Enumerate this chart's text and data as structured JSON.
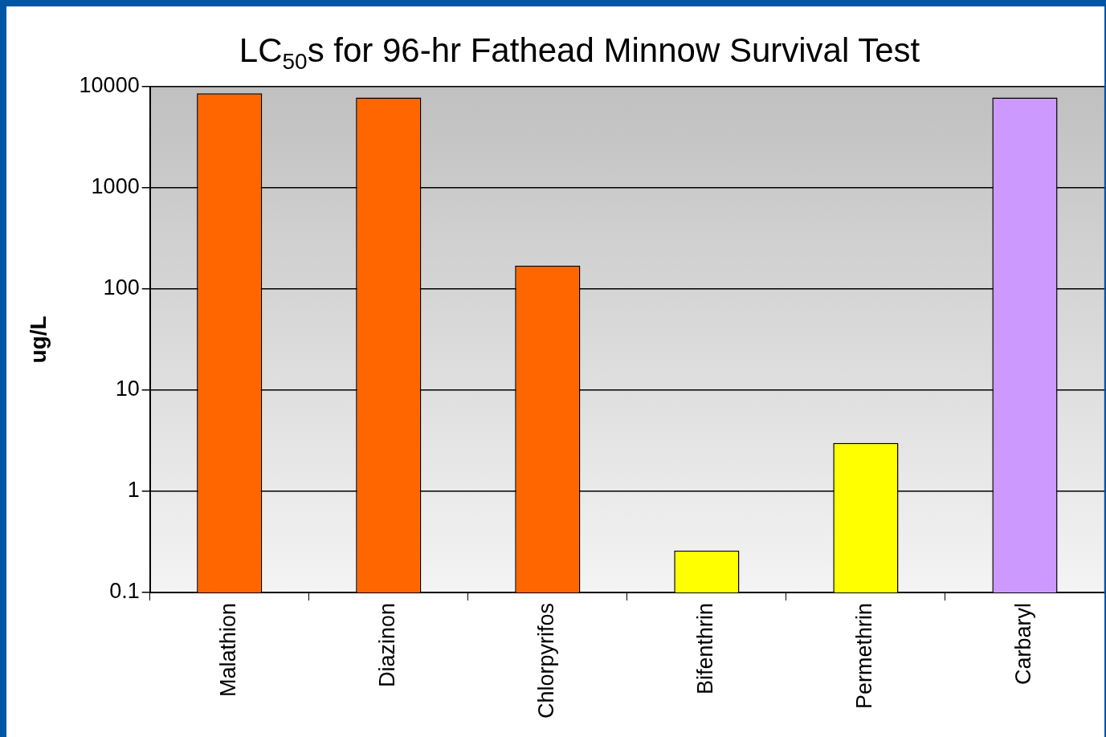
{
  "chart_data": {
    "type": "bar",
    "title": "LC$_{50}$s for 96-hr Fathead Minnow Survival Test",
    "ylabel": "ug/L",
    "categories": [
      "Malathion",
      "Diazinon",
      "Chlorpyrifos",
      "Bifenthrin",
      "Permethrin",
      "Carbaryl"
    ],
    "values": [
      8600,
      7800,
      170,
      0.26,
      3,
      7800
    ],
    "colors": [
      "#ff6600",
      "#ff6600",
      "#ff6600",
      "#ffff00",
      "#ffff00",
      "#cc99ff"
    ],
    "ylim": [
      0.1,
      10000
    ],
    "yticks": [
      0.1,
      1,
      10,
      100,
      1000,
      10000
    ],
    "log": true,
    "grid": "y"
  }
}
